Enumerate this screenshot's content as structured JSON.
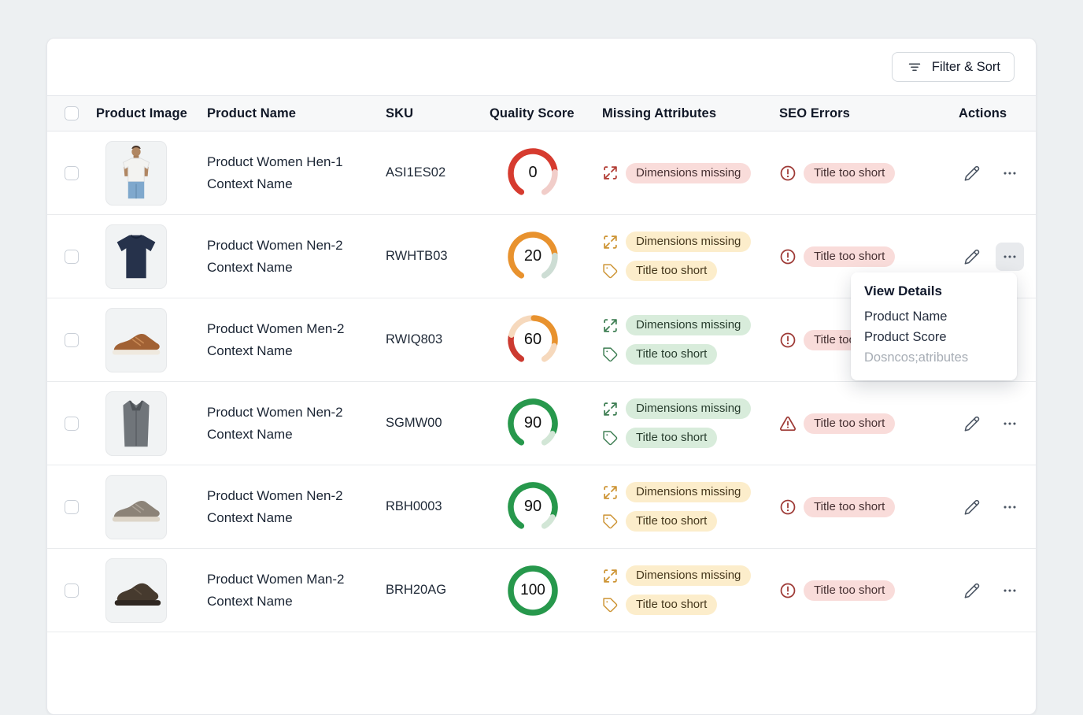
{
  "toolbar": {
    "filter_button_label": "Filter & Sort"
  },
  "table": {
    "columns": [
      "Product Image",
      "Product Name",
      "SKU",
      "Quality Score",
      "Missing Attributes",
      "SEO Errors",
      "Actions"
    ],
    "rows": [
      {
        "image": "man-white-tshirt",
        "name": "Product Women Hen-1",
        "context": "Context Name",
        "sku": "ASI1ES02",
        "score": 0,
        "gauge": {
          "full": false,
          "segments": [
            {
              "color": "#d63b2f",
              "frac": 0.78
            },
            {
              "color": "#f1cdc9",
              "frac": 0.22
            }
          ]
        },
        "missing_attributes": [
          {
            "icon": "expand-icon",
            "label": "Dimensions missing",
            "tone": "red"
          }
        ],
        "seo_errors": [
          {
            "icon": "alert-circle-icon",
            "label": "Title too short"
          }
        ],
        "actions_active": false
      },
      {
        "image": "navy-tshirt",
        "name": "Product Women Nen-2",
        "context": "Context Name",
        "sku": "RWHTB03",
        "score": 20,
        "gauge": {
          "full": false,
          "segments": [
            {
              "color": "#e8922e",
              "frac": 0.78
            },
            {
              "color": "#cdddd4",
              "frac": 0.22
            }
          ]
        },
        "missing_attributes": [
          {
            "icon": "expand-icon",
            "label": "Dimensions missing",
            "tone": "amber"
          },
          {
            "icon": "tag-icon",
            "label": "Title too short",
            "tone": "amber"
          }
        ],
        "seo_errors": [
          {
            "icon": "alert-circle-icon",
            "label": "Title too short"
          }
        ],
        "actions_active": true
      },
      {
        "image": "brown-sneaker",
        "name": "Product Women Men-2",
        "context": "Context Name",
        "sku": "RWIQ803",
        "score": 60,
        "gauge": {
          "full": false,
          "segments": [
            {
              "color": "#cc3a30",
              "frac": 0.24
            },
            {
              "color": "#f6d9bd",
              "frac": 0.26
            },
            {
              "color": "#e8922e",
              "frac": 0.34
            },
            {
              "color": "#f6d9bd",
              "frac": 0.16
            }
          ]
        },
        "missing_attributes": [
          {
            "icon": "expand-icon",
            "label": "Dimensions missing",
            "tone": "green"
          },
          {
            "icon": "tag-icon",
            "label": "Title too short",
            "tone": "green"
          }
        ],
        "seo_errors": [
          {
            "icon": "alert-circle-icon",
            "label": "Title too short"
          }
        ],
        "actions_active": false
      },
      {
        "image": "gray-coat",
        "name": "Product Women Nen-2",
        "context": "Context Name",
        "sku": "SGMW00",
        "score": 90,
        "gauge": {
          "full": false,
          "segments": [
            {
              "color": "#27984c",
              "frac": 0.88
            },
            {
              "color": "#d2e6d6",
              "frac": 0.12
            }
          ]
        },
        "missing_attributes": [
          {
            "icon": "expand-icon",
            "label": "Dimensions missing",
            "tone": "green"
          },
          {
            "icon": "tag-icon",
            "label": "Title too short",
            "tone": "green"
          }
        ],
        "seo_errors": [
          {
            "icon": "alert-triangle-icon",
            "label": "Title too short"
          }
        ],
        "actions_active": false
      },
      {
        "image": "taupe-shoe",
        "name": "Product Women Nen-2",
        "context": "Context Name",
        "sku": "RBH0003",
        "score": 90,
        "gauge": {
          "full": false,
          "segments": [
            {
              "color": "#27984c",
              "frac": 0.88
            },
            {
              "color": "#d2e6d6",
              "frac": 0.12
            }
          ]
        },
        "missing_attributes": [
          {
            "icon": "expand-icon",
            "label": "Dimensions missing",
            "tone": "amber"
          },
          {
            "icon": "tag-icon",
            "label": "Title too short",
            "tone": "amber"
          }
        ],
        "seo_errors": [
          {
            "icon": "alert-circle-icon",
            "label": "Title too short"
          }
        ],
        "actions_active": false
      },
      {
        "image": "brown-boot",
        "name": "Product Women Man-2",
        "context": "Context Name",
        "sku": "BRH20AG",
        "score": 100,
        "gauge": {
          "full": true,
          "segments": [
            {
              "color": "#27984c",
              "frac": 1
            }
          ]
        },
        "missing_attributes": [
          {
            "icon": "expand-icon",
            "label": "Dimensions missing",
            "tone": "amber"
          },
          {
            "icon": "tag-icon",
            "label": "Title too short",
            "tone": "amber"
          }
        ],
        "seo_errors": [
          {
            "icon": "alert-circle-icon",
            "label": "Title too short"
          }
        ],
        "actions_active": false
      }
    ]
  },
  "dropdown": {
    "title": "View Details",
    "items": [
      {
        "label": "Product Name",
        "disabled": false
      },
      {
        "label": "Product Score",
        "disabled": false
      },
      {
        "label": "Dosncos;atributes",
        "disabled": true
      }
    ]
  },
  "colors": {
    "red": "#d63b2f",
    "amber": "#e8922e",
    "green": "#27984c",
    "badge_red_bg": "#f9dcda",
    "badge_amber_bg": "#fcedcb",
    "badge_green_bg": "#d8ecdb"
  }
}
